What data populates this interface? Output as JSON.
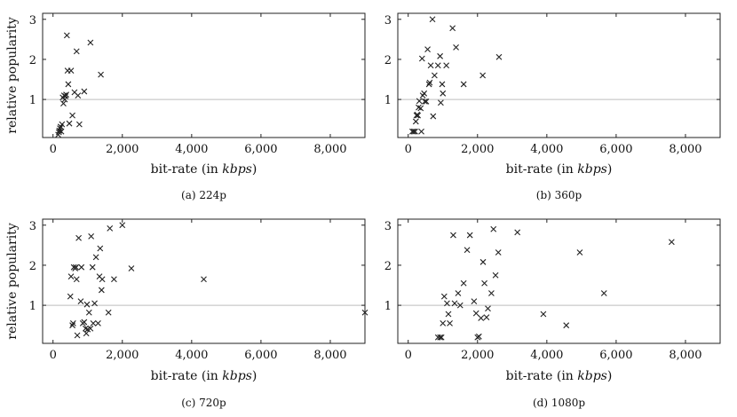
{
  "chart_data": [
    {
      "type": "scatter",
      "subcaption": "(a) 224p",
      "xlabel_prefix": "bit-rate (in ",
      "xlabel_unit": "kbps",
      "xlabel_suffix": ")",
      "ylabel": "relative popularity",
      "xlim": [
        -300,
        9000
      ],
      "ylim": [
        0.05,
        3.15
      ],
      "xticks": [
        0,
        2000,
        4000,
        6000,
        8000
      ],
      "xtick_labels": [
        "0",
        "2,000",
        "4,000",
        "6,000",
        "8,000"
      ],
      "yticks": [
        1,
        2,
        3
      ],
      "ytick_labels": [
        "1",
        "2",
        "3"
      ],
      "reference_line_y": 1,
      "marker": "x",
      "grid": false,
      "points": [
        [
          150,
          0.12
        ],
        [
          170,
          0.18
        ],
        [
          180,
          0.22
        ],
        [
          200,
          0.28
        ],
        [
          220,
          0.32
        ],
        [
          240,
          0.2
        ],
        [
          260,
          0.38
        ],
        [
          280,
          1.05
        ],
        [
          300,
          0.9
        ],
        [
          320,
          1.1
        ],
        [
          340,
          1.0
        ],
        [
          360,
          1.08
        ],
        [
          380,
          1.12
        ],
        [
          400,
          2.6
        ],
        [
          420,
          1.72
        ],
        [
          440,
          1.38
        ],
        [
          470,
          0.4
        ],
        [
          520,
          1.72
        ],
        [
          560,
          0.6
        ],
        [
          620,
          1.18
        ],
        [
          680,
          2.2
        ],
        [
          720,
          1.1
        ],
        [
          760,
          0.38
        ],
        [
          900,
          1.2
        ],
        [
          1080,
          2.42
        ],
        [
          1380,
          1.62
        ]
      ]
    },
    {
      "type": "scatter",
      "subcaption": "(b) 360p",
      "xlabel_prefix": "bit-rate (in ",
      "xlabel_unit": "kbps",
      "xlabel_suffix": ")",
      "ylabel": "",
      "xlim": [
        -300,
        9000
      ],
      "ylim": [
        0.05,
        3.15
      ],
      "xticks": [
        0,
        2000,
        4000,
        6000,
        8000
      ],
      "xtick_labels": [
        "0",
        "2,000",
        "4,000",
        "6,000",
        "8,000"
      ],
      "yticks": [
        1,
        2,
        3
      ],
      "ytick_labels": [
        "1",
        "2",
        "3"
      ],
      "reference_line_y": 1,
      "marker": "x",
      "grid": false,
      "points": [
        [
          120,
          0.2
        ],
        [
          160,
          0.2
        ],
        [
          200,
          0.2
        ],
        [
          220,
          0.45
        ],
        [
          240,
          0.6
        ],
        [
          260,
          0.62
        ],
        [
          280,
          0.6
        ],
        [
          300,
          0.8
        ],
        [
          320,
          0.96
        ],
        [
          360,
          0.78
        ],
        [
          380,
          0.2
        ],
        [
          400,
          2.02
        ],
        [
          420,
          1.1
        ],
        [
          460,
          1.15
        ],
        [
          480,
          0.95
        ],
        [
          520,
          0.95
        ],
        [
          560,
          2.25
        ],
        [
          600,
          1.38
        ],
        [
          620,
          1.42
        ],
        [
          650,
          1.85
        ],
        [
          700,
          3.0
        ],
        [
          720,
          0.58
        ],
        [
          760,
          1.6
        ],
        [
          860,
          1.85
        ],
        [
          920,
          2.08
        ],
        [
          940,
          0.92
        ],
        [
          980,
          1.38
        ],
        [
          1000,
          1.15
        ],
        [
          1100,
          1.85
        ],
        [
          1280,
          2.78
        ],
        [
          1380,
          2.3
        ],
        [
          1600,
          1.38
        ],
        [
          2150,
          1.6
        ],
        [
          2620,
          2.06
        ]
      ]
    },
    {
      "type": "scatter",
      "subcaption": "(c) 720p",
      "xlabel_prefix": "bit-rate (in ",
      "xlabel_unit": "kbps",
      "xlabel_suffix": ")",
      "ylabel": "relative popularity",
      "xlim": [
        -300,
        9000
      ],
      "ylim": [
        0.05,
        3.15
      ],
      "xticks": [
        0,
        2000,
        4000,
        6000,
        8000
      ],
      "xtick_labels": [
        "0",
        "2,000",
        "4,000",
        "6,000",
        "8,000"
      ],
      "yticks": [
        1,
        2,
        3
      ],
      "ytick_labels": [
        "1",
        "2",
        "3"
      ],
      "reference_line_y": 1,
      "marker": "x",
      "grid": false,
      "points": [
        [
          500,
          1.22
        ],
        [
          520,
          1.72
        ],
        [
          560,
          0.5
        ],
        [
          580,
          0.55
        ],
        [
          600,
          1.95
        ],
        [
          640,
          1.92
        ],
        [
          660,
          1.95
        ],
        [
          680,
          1.65
        ],
        [
          700,
          0.25
        ],
        [
          740,
          2.68
        ],
        [
          800,
          1.1
        ],
        [
          820,
          1.95
        ],
        [
          860,
          0.55
        ],
        [
          900,
          0.58
        ],
        [
          940,
          0.42
        ],
        [
          960,
          0.3
        ],
        [
          980,
          1.02
        ],
        [
          1000,
          0.4
        ],
        [
          1040,
          0.82
        ],
        [
          1080,
          0.42
        ],
        [
          1100,
          2.72
        ],
        [
          1140,
          1.95
        ],
        [
          1160,
          0.55
        ],
        [
          1200,
          1.05
        ],
        [
          1240,
          2.2
        ],
        [
          1300,
          0.55
        ],
        [
          1340,
          1.72
        ],
        [
          1360,
          2.42
        ],
        [
          1400,
          1.38
        ],
        [
          1420,
          1.65
        ],
        [
          1600,
          0.82
        ],
        [
          1640,
          2.92
        ],
        [
          1760,
          1.65
        ],
        [
          2000,
          3.0
        ],
        [
          2260,
          1.92
        ],
        [
          4350,
          1.65
        ],
        [
          9000,
          0.82
        ]
      ]
    },
    {
      "type": "scatter",
      "subcaption": "(d) 1080p",
      "xlabel_prefix": "bit-rate (in ",
      "xlabel_unit": "kbps",
      "xlabel_suffix": ")",
      "ylabel": "",
      "xlim": [
        -300,
        9000
      ],
      "ylim": [
        0.05,
        3.15
      ],
      "xticks": [
        0,
        2000,
        4000,
        6000,
        8000
      ],
      "xtick_labels": [
        "0",
        "2,000",
        "4,000",
        "6,000",
        "8,000"
      ],
      "yticks": [
        1,
        2,
        3
      ],
      "ytick_labels": [
        "1",
        "2",
        "3"
      ],
      "reference_line_y": 1,
      "marker": "x",
      "grid": false,
      "points": [
        [
          860,
          0.2
        ],
        [
          920,
          0.2
        ],
        [
          960,
          0.2
        ],
        [
          1000,
          0.55
        ],
        [
          1040,
          1.22
        ],
        [
          1120,
          1.05
        ],
        [
          1160,
          0.78
        ],
        [
          1200,
          0.55
        ],
        [
          1300,
          2.75
        ],
        [
          1340,
          1.05
        ],
        [
          1440,
          1.3
        ],
        [
          1500,
          1.0
        ],
        [
          1600,
          1.55
        ],
        [
          1700,
          2.38
        ],
        [
          1780,
          2.75
        ],
        [
          1900,
          1.1
        ],
        [
          1960,
          0.8
        ],
        [
          2000,
          0.2
        ],
        [
          2040,
          0.22
        ],
        [
          2100,
          0.68
        ],
        [
          2160,
          2.08
        ],
        [
          2200,
          1.55
        ],
        [
          2260,
          0.7
        ],
        [
          2300,
          0.92
        ],
        [
          2400,
          1.3
        ],
        [
          2460,
          2.9
        ],
        [
          2520,
          1.75
        ],
        [
          2600,
          2.32
        ],
        [
          3150,
          2.82
        ],
        [
          3900,
          0.78
        ],
        [
          4560,
          0.5
        ],
        [
          4950,
          2.32
        ],
        [
          5650,
          1.3
        ],
        [
          7600,
          2.58
        ]
      ]
    }
  ]
}
